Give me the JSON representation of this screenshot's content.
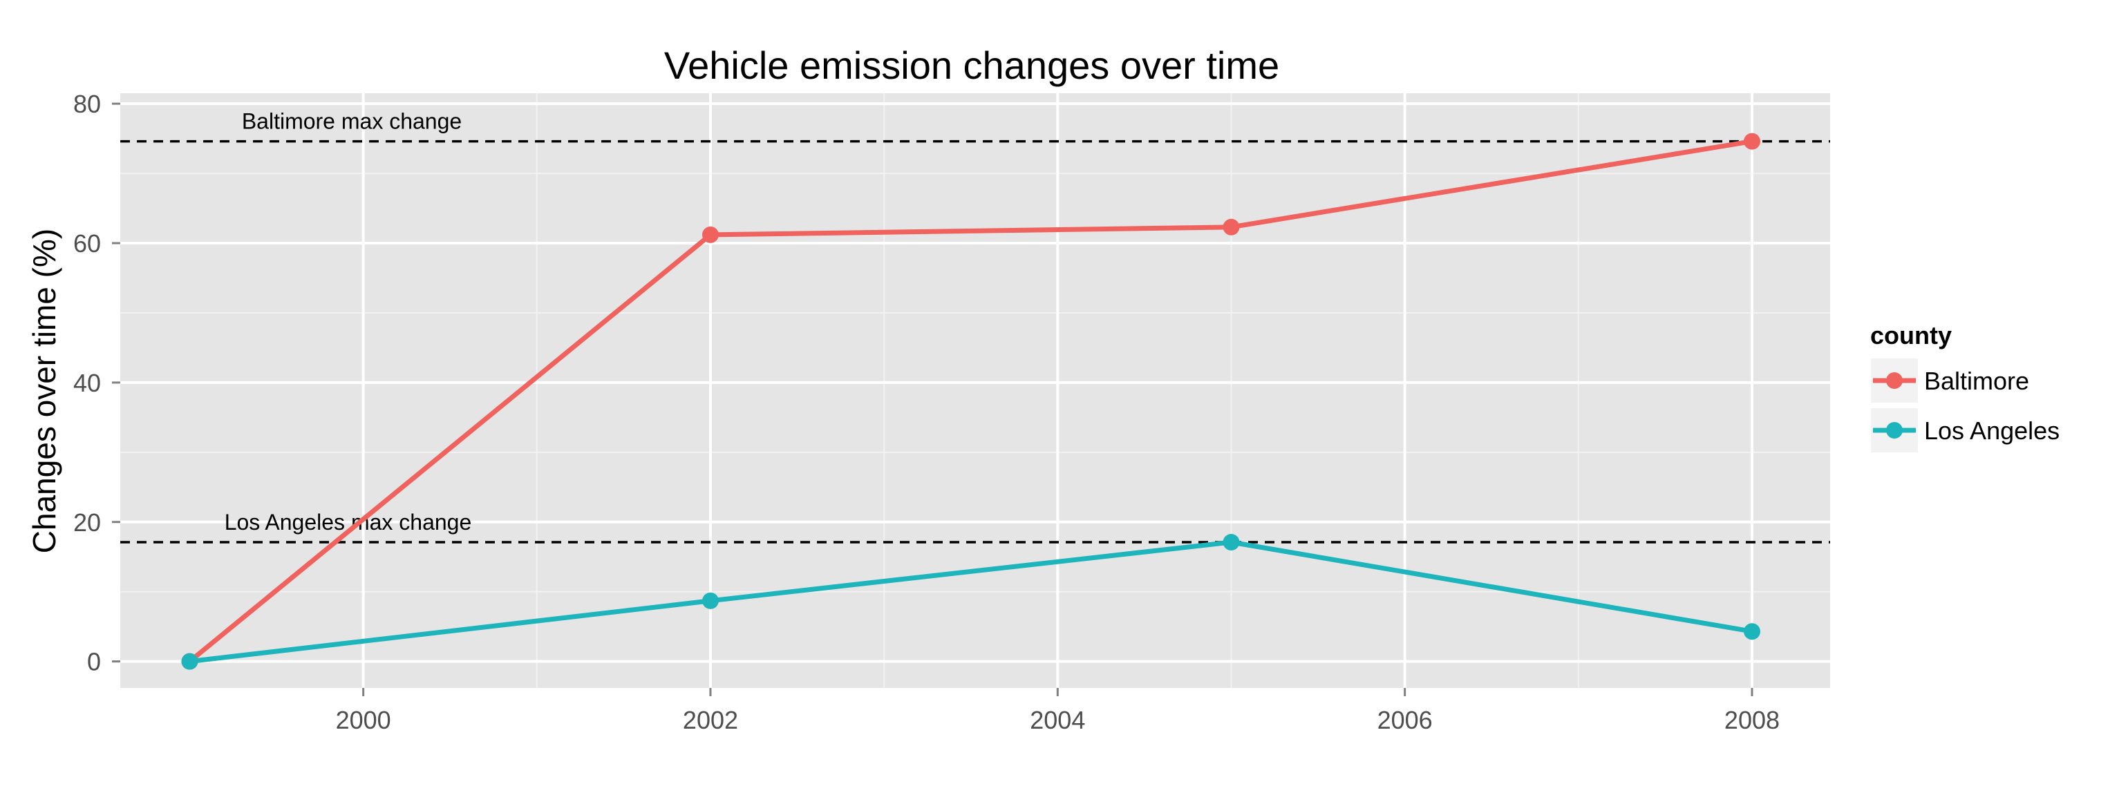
{
  "chart_data": {
    "type": "line",
    "title": "Vehicle emission changes over time",
    "xlabel": "",
    "ylabel": "Changes over time (%)",
    "x": [
      1999,
      2002,
      2005,
      2008
    ],
    "xlim": [
      1998.6,
      2008.45
    ],
    "ylim": [
      -3.8,
      81.5
    ],
    "xticks": [
      2000,
      2002,
      2004,
      2006,
      2008
    ],
    "yticks": [
      0,
      20,
      40,
      60,
      80
    ],
    "grid": true,
    "legend": {
      "title": "county",
      "position": "right"
    },
    "series": [
      {
        "name": "Baltimore",
        "color": "#f0625d",
        "values": [
          0,
          61.2,
          62.3,
          74.6
        ]
      },
      {
        "name": "Los Angeles",
        "color": "#1db4bc",
        "values": [
          0,
          8.7,
          17.1,
          4.3
        ]
      }
    ],
    "reference_lines": [
      {
        "label": "Baltimore max change",
        "y": 74.6,
        "label_x": 1999.3,
        "style": "dashed"
      },
      {
        "label": "Los Angeles max change",
        "y": 17.1,
        "label_x": 1999.2,
        "style": "dashed"
      }
    ]
  }
}
